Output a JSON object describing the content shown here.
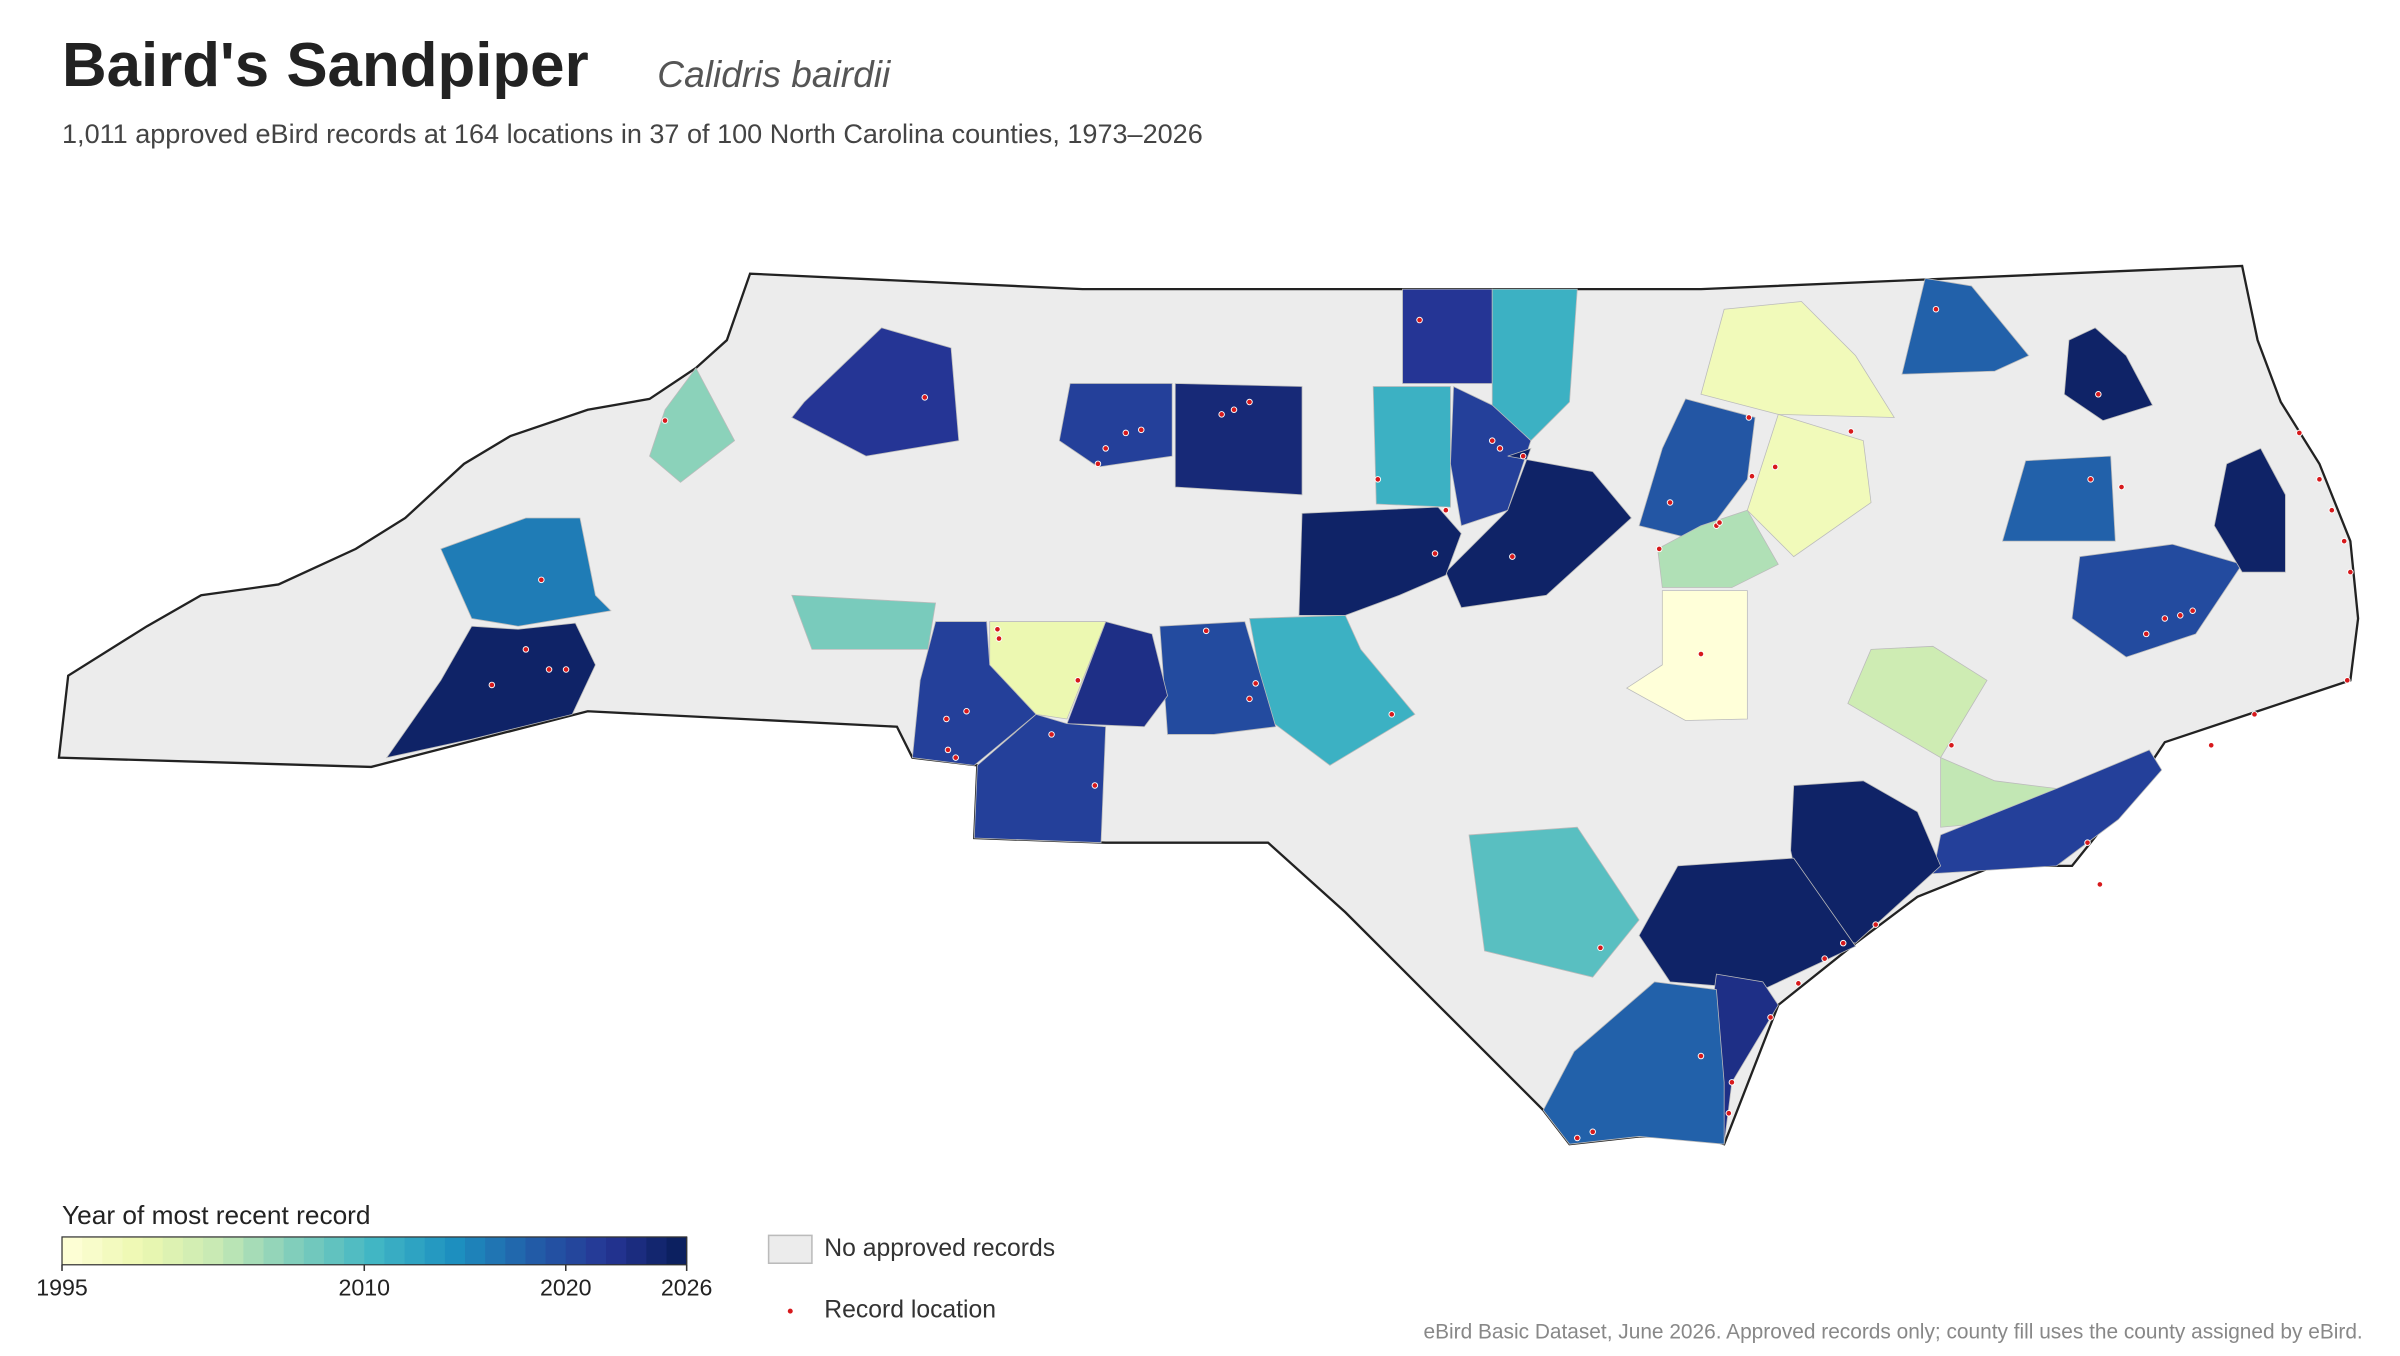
{
  "header": {
    "title": "Baird's Sandpiper",
    "scientific_name": "Calidris bairdii",
    "subtitle": "1,011 approved eBird records at 164 locations in 37 of 100 North Carolina counties, 1973–2026"
  },
  "chart_data": {
    "type": "choropleth",
    "colorbar_label": "Year of most recent record",
    "colorlim": [
      1995,
      2026
    ],
    "colorbar_ticks": [
      1995,
      2010,
      2020,
      2026
    ],
    "colormap": "YlGnBu",
    "no_data_color": "#ececec",
    "no_data_label": "No approved records",
    "point_color": "#d7191c",
    "point_label": "Record location",
    "values": [
      2006,
      2022,
      2021,
      2024,
      2011,
      2022,
      2011,
      2021,
      2025,
      2025,
      1998,
      2019,
      1998,
      2004,
      1995,
      2018,
      2025,
      2018,
      2020,
      2025,
      2002,
      2003,
      2021,
      2025,
      2025,
      2023,
      2018,
      2009,
      2011,
      2020,
      2023,
      1999,
      2021,
      2021,
      2007,
      2016,
      2025
    ]
  },
  "footer": {
    "source": "eBird Basic Dataset, June 2026. Approved records only; county fill uses the county assigned by eBird."
  }
}
